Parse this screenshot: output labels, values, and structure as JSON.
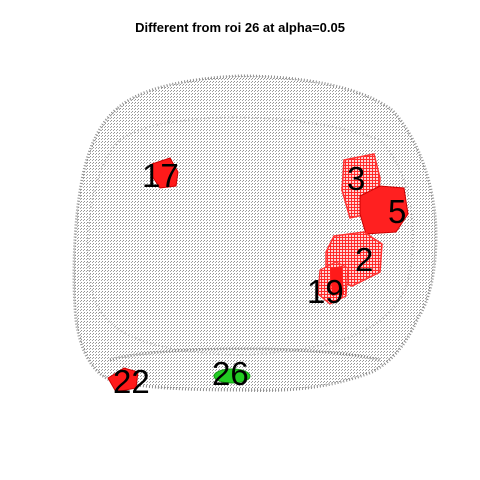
{
  "title": "Different from roi 26 at alpha=0.05",
  "colors": {
    "brain": "#8c8c8c",
    "significant": "#ff0000",
    "reference": "#22cc22",
    "label": "#000000"
  },
  "rois": [
    {
      "id": "17",
      "label": "17",
      "status": "significant"
    },
    {
      "id": "3",
      "label": "3",
      "status": "significant"
    },
    {
      "id": "5",
      "label": "5",
      "status": "significant"
    },
    {
      "id": "2",
      "label": "2",
      "status": "significant"
    },
    {
      "id": "19",
      "label": "19",
      "status": "significant"
    },
    {
      "id": "22",
      "label": "22",
      "status": "significant"
    },
    {
      "id": "26",
      "label": "26",
      "status": "reference"
    }
  ]
}
